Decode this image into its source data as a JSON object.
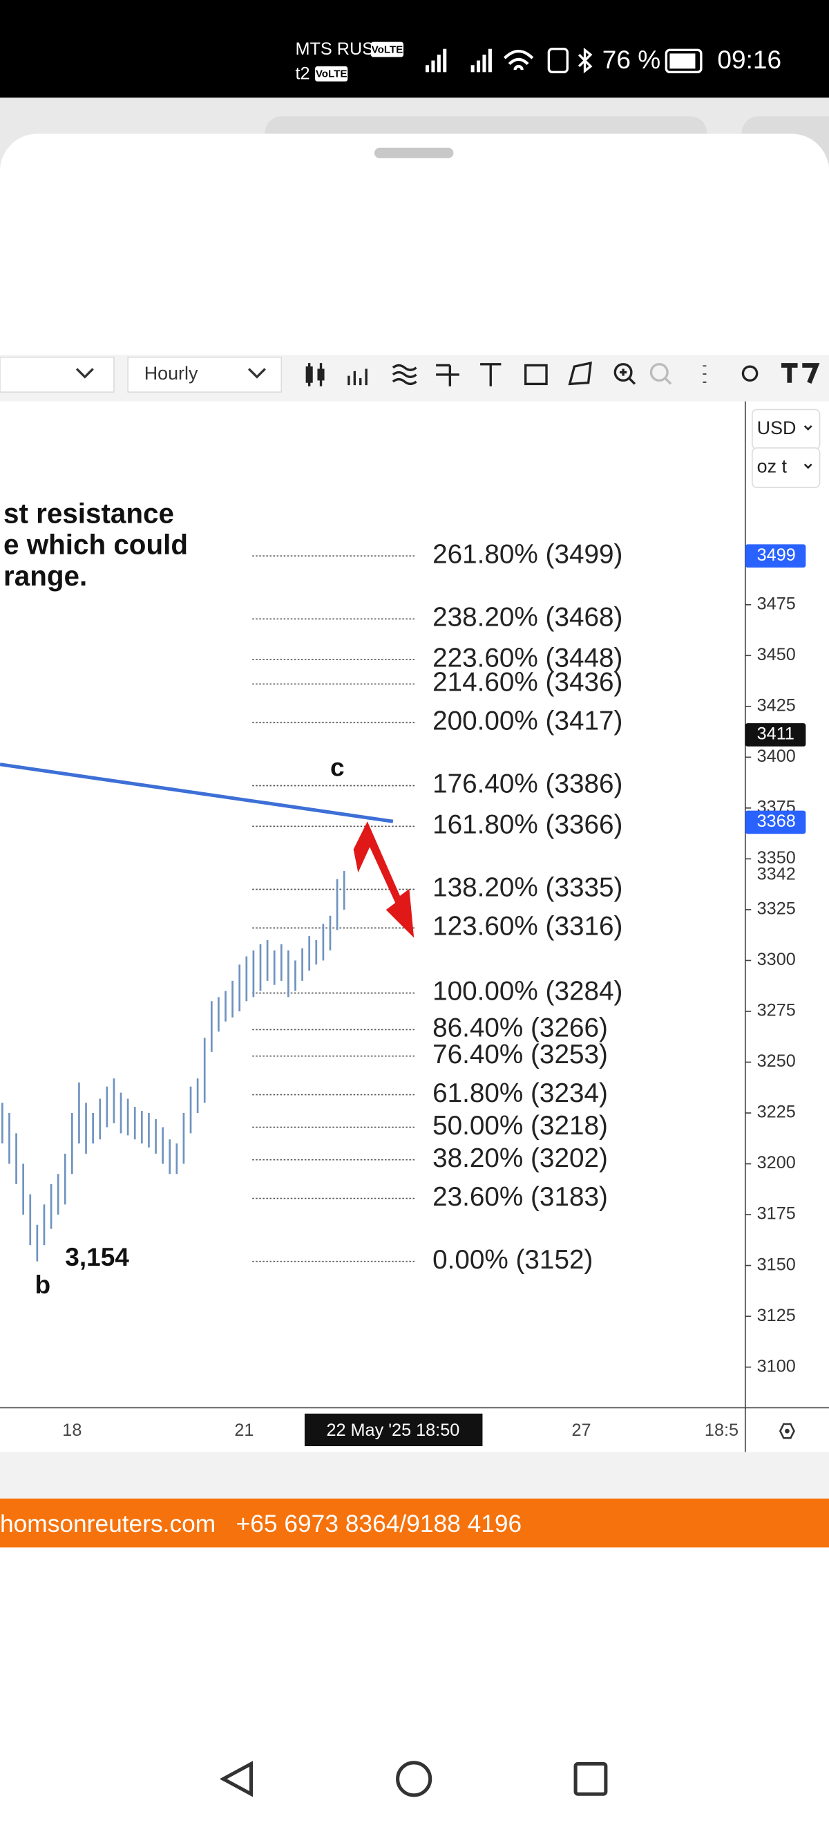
{
  "status_bar": {
    "carrier1": "MTS RUS",
    "volte1": "VoLTE",
    "carrier2": "t2",
    "volte2": "VoLTE",
    "battery": "76 %",
    "time": "09:16"
  },
  "toolbar": {
    "interval": "Hourly"
  },
  "chart_data": {
    "type": "range-bars",
    "currency": "USD",
    "unit": "oz t",
    "color": "#6f93c0",
    "annotation_lines": [
      "st resistance",
      "e which could",
      "range."
    ],
    "wave_labels": [
      "c",
      "b"
    ],
    "low_label": "3,154",
    "fib_levels": [
      {
        "label": "261.80% (3499)",
        "value": 3499
      },
      {
        "label": "238.20% (3468)",
        "value": 3468
      },
      {
        "label": "223.60% (3448)",
        "value": 3448
      },
      {
        "label": "214.60% (3436)",
        "value": 3436
      },
      {
        "label": "200.00% (3417)",
        "value": 3417
      },
      {
        "label": "176.40% (3386)",
        "value": 3386
      },
      {
        "label": "161.80% (3366)",
        "value": 3366
      },
      {
        "label": "138.20% (3335)",
        "value": 3335
      },
      {
        "label": "123.60% (3316)",
        "value": 3316
      },
      {
        "label": "100.00% (3284)",
        "value": 3284
      },
      {
        "label": "86.40% (3266)",
        "value": 3266
      },
      {
        "label": "76.40% (3253)",
        "value": 3253
      },
      {
        "label": "61.80% (3234)",
        "value": 3234
      },
      {
        "label": "50.00% (3218)",
        "value": 3218
      },
      {
        "label": "38.20% (3202)",
        "value": 3202
      },
      {
        "label": "23.60% (3183)",
        "value": 3183
      },
      {
        "label": "0.00% (3152)",
        "value": 3152
      }
    ],
    "price_labels": [
      {
        "value": 3499,
        "style": "blue"
      },
      {
        "value": 3411,
        "style": "black"
      },
      {
        "value": 3368,
        "style": "blue"
      },
      {
        "value": 3342,
        "style": "plain"
      }
    ],
    "ylim": [
      3080,
      3575
    ],
    "yticks": [
      3100,
      3125,
      3150,
      3175,
      3200,
      3225,
      3250,
      3275,
      3300,
      3325,
      3350,
      3375,
      3400,
      3425,
      3450,
      3475
    ],
    "x_labels": [
      "18",
      "21",
      "22 May '25  18:50",
      "27",
      "18:5"
    ],
    "highs": [
      3230,
      3225,
      3215,
      3200,
      3185,
      3170,
      3180,
      3190,
      3195,
      3205,
      3225,
      3240,
      3230,
      3225,
      3232,
      3238,
      3242,
      3235,
      3232,
      3228,
      3226,
      3225,
      3222,
      3218,
      3212,
      3210,
      3225,
      3238,
      3242,
      3262,
      3280,
      3282,
      3285,
      3290,
      3298,
      3302,
      3305,
      3308,
      3310,
      3305,
      3308,
      3305,
      3300,
      3306,
      3312,
      3310,
      3318,
      3322,
      3340,
      3344
    ],
    "lows": [
      3210,
      3200,
      3190,
      3175,
      3160,
      3152,
      3160,
      3168,
      3175,
      3180,
      3195,
      3210,
      3205,
      3210,
      3212,
      3218,
      3220,
      3215,
      3214,
      3212,
      3210,
      3208,
      3205,
      3200,
      3195,
      3195,
      3200,
      3215,
      3225,
      3230,
      3255,
      3265,
      3270,
      3272,
      3275,
      3280,
      3282,
      3285,
      3290,
      3288,
      3290,
      3282,
      3285,
      3290,
      3295,
      3298,
      3300,
      3305,
      3315,
      3325
    ]
  },
  "banner": {
    "text": "homsonreuters.com   +65 6973 8364/9188 4196"
  }
}
